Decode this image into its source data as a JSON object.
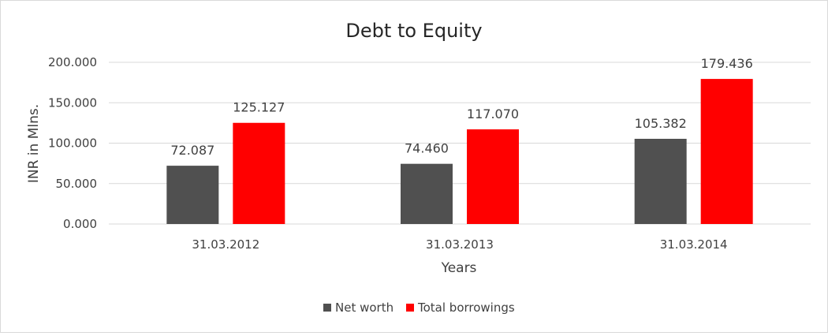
{
  "chart_data": {
    "type": "bar",
    "title": "Debt to Equity",
    "xlabel": "Years",
    "ylabel": "INR in Mlns.",
    "categories": [
      "31.03.2012",
      "31.03.2013",
      "31.03.2014"
    ],
    "ylim": [
      0,
      200
    ],
    "yticks": [
      0,
      50,
      100,
      150,
      200
    ],
    "ytick_labels": [
      "0.000",
      "50.000",
      "100.000",
      "150.000",
      "200.000"
    ],
    "grid": true,
    "legend_position": "bottom",
    "series": [
      {
        "name": "Net worth",
        "color": "#505050",
        "values": [
          72.087,
          74.46,
          105.382
        ],
        "labels": [
          "72.087",
          "74.460",
          "105.382"
        ]
      },
      {
        "name": "Total borrowings",
        "color": "#ff0000",
        "values": [
          125.127,
          117.07,
          179.436
        ],
        "labels": [
          "125.127",
          "117.070",
          "179.436"
        ]
      }
    ]
  }
}
